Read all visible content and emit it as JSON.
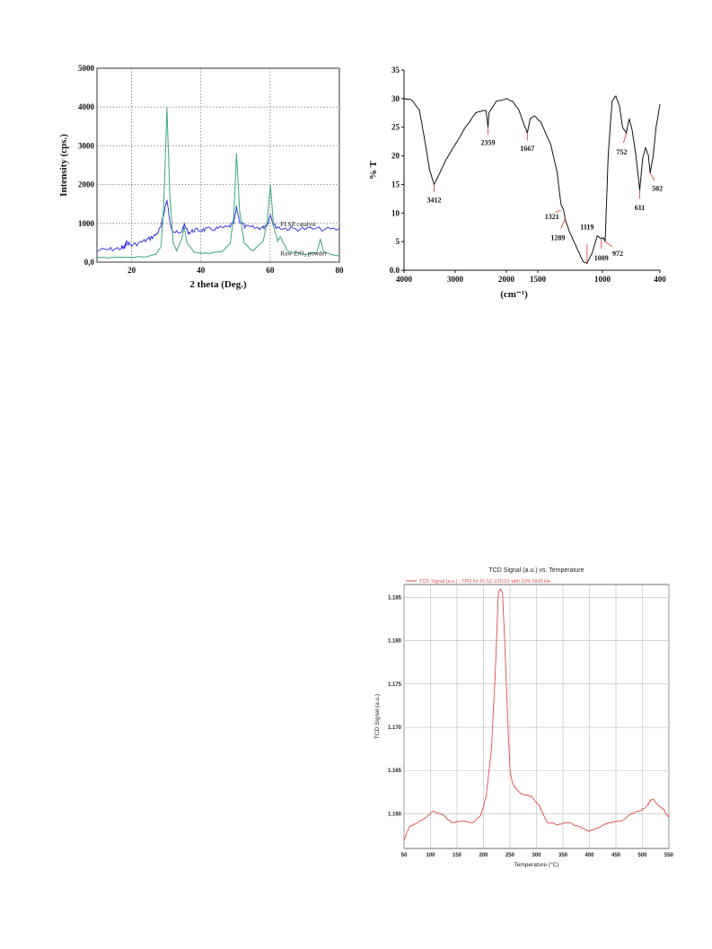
{
  "chart_data": [
    {
      "type": "line",
      "title": "",
      "xlabel": "2 theta (Deg.)",
      "ylabel": "Intensity (cps.)",
      "xlim": [
        10,
        80
      ],
      "ylim": [
        0,
        5000
      ],
      "xticks": [
        "20",
        "40",
        "60",
        "80"
      ],
      "yticks": [
        "0,0",
        "1000",
        "2000",
        "3000",
        "4000",
        "5000"
      ],
      "grid": true,
      "series": [
        {
          "name": "FLSZ catalyst",
          "color": "#3a3adf",
          "x": [
            10,
            14,
            17,
            18,
            18.5,
            20,
            23,
            25,
            27,
            28.5,
            29.5,
            30.2,
            31,
            32,
            34,
            35.2,
            36.5,
            38,
            40,
            42,
            45,
            48,
            49.5,
            50.3,
            51.2,
            53,
            56,
            58,
            59.3,
            60.1,
            61,
            63,
            66,
            70,
            75,
            80
          ],
          "y": [
            300,
            330,
            360,
            380,
            520,
            430,
            520,
            600,
            700,
            900,
            1350,
            1600,
            1050,
            800,
            720,
            950,
            760,
            820,
            830,
            840,
            870,
            900,
            1000,
            1400,
            1050,
            900,
            880,
            890,
            1000,
            1250,
            950,
            880,
            860,
            860,
            850,
            840
          ]
        },
        {
          "name": "Raw ZrO2 powder",
          "color": "#3aa87a",
          "x": [
            10,
            20,
            25,
            27,
            28.5,
            29.3,
            30.2,
            31,
            32,
            33,
            34.5,
            35.2,
            36,
            38,
            42,
            46,
            48.5,
            49.5,
            50.3,
            51.2,
            52.5,
            55,
            58,
            59.2,
            60.1,
            61,
            62.2,
            63,
            65,
            70,
            73.5,
            74.5,
            75.5,
            78,
            80
          ],
          "y": [
            120,
            130,
            150,
            200,
            400,
            1500,
            4000,
            1800,
            500,
            300,
            600,
            900,
            500,
            250,
            230,
            270,
            500,
            1200,
            2800,
            1300,
            500,
            280,
            550,
            1100,
            2000,
            900,
            550,
            650,
            280,
            200,
            250,
            600,
            260,
            180,
            170
          ]
        }
      ],
      "annotations": [
        "FLSZ catalyst",
        "Raw ZrO₂ powder"
      ]
    },
    {
      "type": "line",
      "title": "",
      "xlabel": "(cm⁻¹)",
      "ylabel": "% T",
      "xlim": [
        4000,
        400
      ],
      "ylim": [
        0,
        35
      ],
      "xticks": [
        "4000",
        "3000",
        "2000",
        "1500",
        "1000",
        "400"
      ],
      "yticks": [
        "0.0",
        "5",
        "10",
        "15",
        "20",
        "25",
        "30",
        "35"
      ],
      "grid": false,
      "series": [
        {
          "name": "",
          "color": "#111111",
          "x": [
            4000,
            3850,
            3700,
            3600,
            3500,
            3412,
            3300,
            3200,
            3100,
            3000,
            2800,
            2600,
            2400,
            2370,
            2359,
            2340,
            2200,
            2000,
            1900,
            1800,
            1720,
            1667,
            1620,
            1550,
            1480,
            1400,
            1350,
            1321,
            1300,
            1289,
            1260,
            1200,
            1150,
            1119,
            1080,
            1040,
            1009,
            990,
            972,
            940,
            900,
            860,
            820,
            790,
            752,
            720,
            690,
            650,
            611,
            580,
            550,
            520,
            502,
            470,
            440,
            400
          ],
          "y": [
            30,
            29.8,
            28,
            23,
            17.5,
            15,
            17,
            19,
            20.5,
            22,
            25,
            27.5,
            28,
            26,
            25,
            27.5,
            29.5,
            30,
            29.5,
            28,
            25.5,
            24,
            26.5,
            27,
            26,
            22,
            17,
            11.5,
            10.5,
            9,
            7,
            4,
            1.5,
            1.2,
            3,
            6,
            5.5,
            5.7,
            5,
            20,
            29.5,
            30.5,
            28.5,
            25,
            24,
            26.5,
            24.5,
            20,
            14,
            19.5,
            21.5,
            20,
            17,
            20,
            25,
            29
          ]
        }
      ],
      "annotations": [
        "3412",
        "2359",
        "1667",
        "1321",
        "1289",
        "1119",
        "1009",
        "972",
        "752",
        "611",
        "502"
      ]
    },
    {
      "type": "line",
      "title": "TCD Signal (a.u.) vs. Temperature",
      "legend": "TCD Signal (a.u.) - TPD for FLSZ 131011 with 10% NH3-He",
      "xlabel": "Temperature (°C)",
      "ylabel": "TCD Signal (a.u.)",
      "xlim": [
        50,
        550
      ],
      "ylim": [
        1.156,
        1.1865
      ],
      "xticks": [
        "50",
        "100",
        "150",
        "200",
        "250",
        "300",
        "350",
        "400",
        "450",
        "500",
        "550"
      ],
      "yticks": [
        "1.160",
        "1.165",
        "1.170",
        "1.175",
        "1.180",
        "1.185"
      ],
      "grid": true,
      "series": [
        {
          "name": "",
          "color": "#e24a4a",
          "x": [
            50,
            60,
            75,
            90,
            105,
            120,
            140,
            160,
            180,
            195,
            205,
            215,
            222,
            228,
            232,
            236,
            240,
            245,
            250,
            255,
            262,
            275,
            290,
            305,
            320,
            340,
            360,
            380,
            400,
            420,
            440,
            460,
            480,
            500,
            510,
            515,
            520,
            530,
            540,
            550
          ],
          "y": [
            1.157,
            1.1585,
            1.159,
            1.1595,
            1.1603,
            1.16,
            1.159,
            1.1592,
            1.159,
            1.1598,
            1.162,
            1.1675,
            1.176,
            1.1855,
            1.186,
            1.1855,
            1.18,
            1.172,
            1.165,
            1.1635,
            1.1628,
            1.1622,
            1.162,
            1.161,
            1.159,
            1.1588,
            1.159,
            1.1585,
            1.158,
            1.1585,
            1.159,
            1.1592,
            1.16,
            1.1605,
            1.161,
            1.1615,
            1.1617,
            1.161,
            1.1605,
            1.1595
          ]
        }
      ]
    }
  ]
}
